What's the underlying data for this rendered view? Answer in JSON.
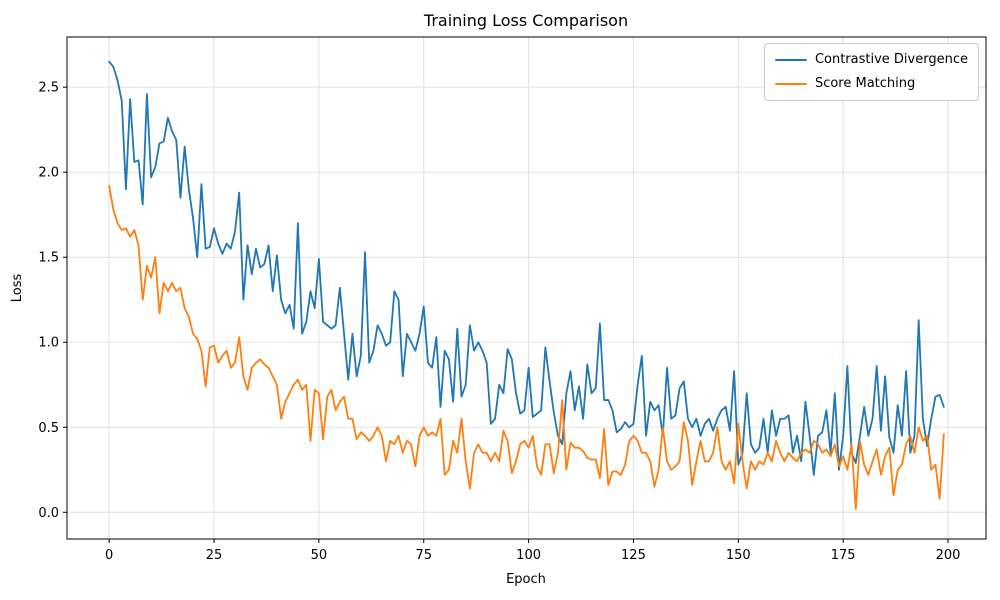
{
  "chart_data": {
    "type": "line",
    "title": "Training Loss Comparison",
    "xlabel": "Epoch",
    "ylabel": "Loss",
    "grid": true,
    "grid_color": "#e0e0e0",
    "spine_color": "#000000",
    "background_color": "#ffffff",
    "legend_position": "upper right",
    "xlim": [
      -10.05,
      209.05
    ],
    "ylim": [
      -0.157,
      2.795
    ],
    "x_ticks": [
      0,
      25,
      50,
      75,
      100,
      125,
      150,
      175,
      200
    ],
    "y_ticks": [
      0.0,
      0.5,
      1.0,
      1.5,
      2.0,
      2.5
    ],
    "x": [
      0,
      1,
      2,
      3,
      4,
      5,
      6,
      7,
      8,
      9,
      10,
      11,
      12,
      13,
      14,
      15,
      16,
      17,
      18,
      19,
      20,
      21,
      22,
      23,
      24,
      25,
      26,
      27,
      28,
      29,
      30,
      31,
      32,
      33,
      34,
      35,
      36,
      37,
      38,
      39,
      40,
      41,
      42,
      43,
      44,
      45,
      46,
      47,
      48,
      49,
      50,
      51,
      52,
      53,
      54,
      55,
      56,
      57,
      58,
      59,
      60,
      61,
      62,
      63,
      64,
      65,
      66,
      67,
      68,
      69,
      70,
      71,
      72,
      73,
      74,
      75,
      76,
      77,
      78,
      79,
      80,
      81,
      82,
      83,
      84,
      85,
      86,
      87,
      88,
      89,
      90,
      91,
      92,
      93,
      94,
      95,
      96,
      97,
      98,
      99,
      100,
      101,
      102,
      103,
      104,
      105,
      106,
      107,
      108,
      109,
      110,
      111,
      112,
      113,
      114,
      115,
      116,
      117,
      118,
      119,
      120,
      121,
      122,
      123,
      124,
      125,
      126,
      127,
      128,
      129,
      130,
      131,
      132,
      133,
      134,
      135,
      136,
      137,
      138,
      139,
      140,
      141,
      142,
      143,
      144,
      145,
      146,
      147,
      148,
      149,
      150,
      151,
      152,
      153,
      154,
      155,
      156,
      157,
      158,
      159,
      160,
      161,
      162,
      163,
      164,
      165,
      166,
      167,
      168,
      169,
      170,
      171,
      172,
      173,
      174,
      175,
      176,
      177,
      178,
      179,
      180,
      181,
      182,
      183,
      184,
      185,
      186,
      187,
      188,
      189,
      190,
      191,
      192,
      193,
      194,
      195,
      196,
      197,
      198,
      199
    ],
    "series": [
      {
        "name": "Contrastive Divergence",
        "color": "#1f77b4",
        "values": [
          2.65,
          2.62,
          2.54,
          2.42,
          1.9,
          2.43,
          2.06,
          2.07,
          1.81,
          2.46,
          1.97,
          2.03,
          2.17,
          2.18,
          2.32,
          2.24,
          2.19,
          1.85,
          2.15,
          1.9,
          1.73,
          1.5,
          1.93,
          1.55,
          1.56,
          1.67,
          1.58,
          1.52,
          1.58,
          1.55,
          1.65,
          1.88,
          1.25,
          1.57,
          1.4,
          1.55,
          1.44,
          1.46,
          1.57,
          1.3,
          1.51,
          1.25,
          1.17,
          1.22,
          1.08,
          1.7,
          1.05,
          1.12,
          1.3,
          1.2,
          1.49,
          1.12,
          1.1,
          1.08,
          1.1,
          1.32,
          1.05,
          0.78,
          1.05,
          0.8,
          0.92,
          1.53,
          0.88,
          0.95,
          1.1,
          1.05,
          0.98,
          1.0,
          1.3,
          1.25,
          0.8,
          1.05,
          1.0,
          0.95,
          1.05,
          1.21,
          0.88,
          0.85,
          1.03,
          0.62,
          0.95,
          0.9,
          0.65,
          1.08,
          0.68,
          0.75,
          1.1,
          0.95,
          1.0,
          0.95,
          0.88,
          0.52,
          0.55,
          0.75,
          0.7,
          0.96,
          0.9,
          0.7,
          0.58,
          0.6,
          0.85,
          0.56,
          0.58,
          0.6,
          0.97,
          0.77,
          0.59,
          0.45,
          0.4,
          0.7,
          0.83,
          0.6,
          0.74,
          0.55,
          0.87,
          0.7,
          0.73,
          1.11,
          0.66,
          0.66,
          0.6,
          0.47,
          0.49,
          0.53,
          0.5,
          0.52,
          0.75,
          0.92,
          0.45,
          0.65,
          0.6,
          0.63,
          0.45,
          0.85,
          0.55,
          0.57,
          0.73,
          0.77,
          0.55,
          0.5,
          0.55,
          0.45,
          0.52,
          0.55,
          0.48,
          0.55,
          0.6,
          0.62,
          0.48,
          0.83,
          0.28,
          0.35,
          0.7,
          0.4,
          0.35,
          0.38,
          0.55,
          0.35,
          0.6,
          0.45,
          0.55,
          0.55,
          0.57,
          0.35,
          0.45,
          0.3,
          0.65,
          0.45,
          0.22,
          0.45,
          0.47,
          0.6,
          0.35,
          0.7,
          0.25,
          0.45,
          0.86,
          0.35,
          0.29,
          0.45,
          0.62,
          0.45,
          0.55,
          0.86,
          0.48,
          0.8,
          0.44,
          0.35,
          0.63,
          0.45,
          0.83,
          0.35,
          0.45,
          1.13,
          0.55,
          0.39,
          0.55,
          0.68,
          0.69,
          0.62
        ]
      },
      {
        "name": "Score Matching",
        "color": "#ff7f0e",
        "values": [
          1.92,
          1.78,
          1.7,
          1.66,
          1.67,
          1.62,
          1.66,
          1.57,
          1.25,
          1.45,
          1.38,
          1.5,
          1.17,
          1.35,
          1.3,
          1.35,
          1.3,
          1.32,
          1.2,
          1.15,
          1.05,
          1.02,
          0.95,
          0.74,
          0.97,
          0.98,
          0.88,
          0.92,
          0.95,
          0.85,
          0.88,
          1.03,
          0.8,
          0.72,
          0.85,
          0.88,
          0.9,
          0.87,
          0.85,
          0.8,
          0.75,
          0.55,
          0.65,
          0.7,
          0.75,
          0.78,
          0.72,
          0.75,
          0.42,
          0.72,
          0.7,
          0.43,
          0.68,
          0.72,
          0.6,
          0.65,
          0.68,
          0.55,
          0.55,
          0.43,
          0.47,
          0.45,
          0.42,
          0.45,
          0.5,
          0.45,
          0.3,
          0.42,
          0.4,
          0.45,
          0.35,
          0.42,
          0.4,
          0.27,
          0.45,
          0.5,
          0.45,
          0.47,
          0.45,
          0.55,
          0.22,
          0.25,
          0.42,
          0.35,
          0.55,
          0.3,
          0.14,
          0.35,
          0.4,
          0.35,
          0.35,
          0.3,
          0.35,
          0.3,
          0.48,
          0.42,
          0.23,
          0.3,
          0.4,
          0.42,
          0.38,
          0.45,
          0.27,
          0.22,
          0.4,
          0.4,
          0.23,
          0.35,
          0.66,
          0.25,
          0.41,
          0.38,
          0.38,
          0.36,
          0.32,
          0.31,
          0.31,
          0.2,
          0.49,
          0.16,
          0.24,
          0.24,
          0.22,
          0.28,
          0.42,
          0.45,
          0.42,
          0.35,
          0.35,
          0.3,
          0.15,
          0.25,
          0.5,
          0.3,
          0.25,
          0.27,
          0.3,
          0.53,
          0.42,
          0.16,
          0.3,
          0.42,
          0.3,
          0.3,
          0.35,
          0.5,
          0.3,
          0.25,
          0.3,
          0.17,
          0.52,
          0.3,
          0.14,
          0.3,
          0.25,
          0.3,
          0.28,
          0.35,
          0.3,
          0.42,
          0.35,
          0.3,
          0.35,
          0.32,
          0.3,
          0.35,
          0.37,
          0.35,
          0.42,
          0.4,
          0.35,
          0.37,
          0.33,
          0.4,
          0.27,
          0.33,
          0.25,
          0.4,
          0.02,
          0.42,
          0.28,
          0.22,
          0.3,
          0.37,
          0.22,
          0.33,
          0.38,
          0.1,
          0.25,
          0.28,
          0.4,
          0.45,
          0.35,
          0.5,
          0.42,
          0.45,
          0.25,
          0.28,
          0.08,
          0.46
        ]
      }
    ]
  }
}
